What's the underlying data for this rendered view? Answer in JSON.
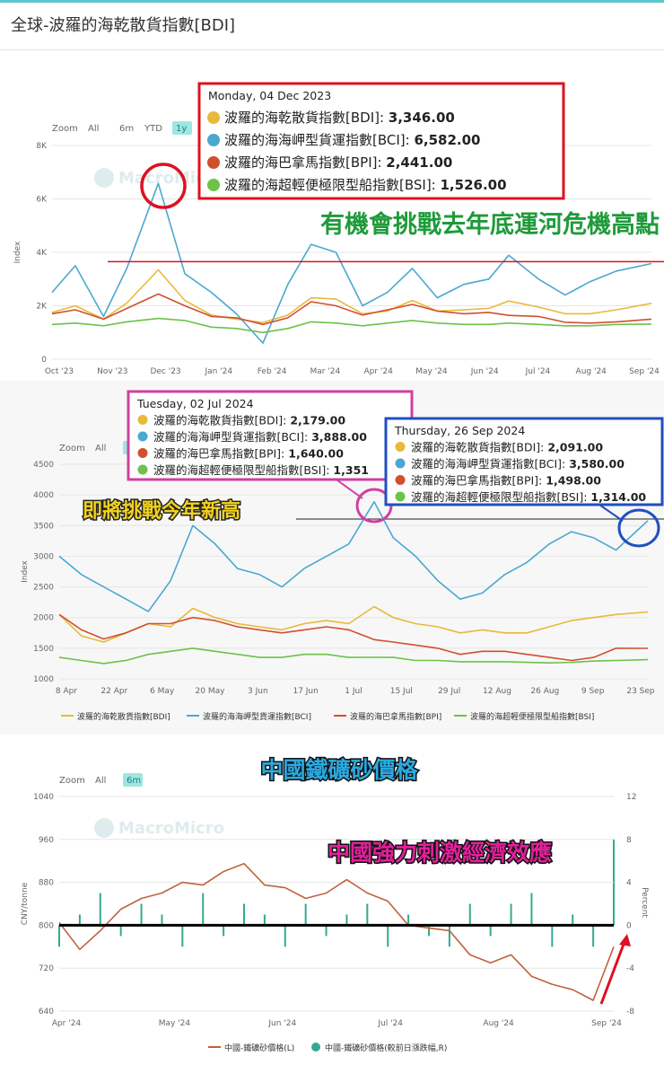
{
  "page": {
    "title": "全球-波羅的海乾散貨指數[BDI]"
  },
  "colors": {
    "bdi": "#e8b93a",
    "bci": "#4aa8d0",
    "bpi": "#d0502e",
    "bsi": "#6cc24a",
    "iron": "#c0623a",
    "pct": "#33aa8f",
    "red": "#dd1122"
  },
  "icons": [
    "macromicro-logo-icon"
  ],
  "chart_data": [
    {
      "type": "line",
      "zoom": {
        "label": "Zoom",
        "options": [
          "All",
          "6m",
          "YTD",
          "1y"
        ],
        "selected": "1y"
      },
      "watermark": "MacroMicro",
      "ylabel": "Index",
      "ylim": [
        0,
        8000
      ],
      "yticks": [
        "0",
        "2K",
        "4K",
        "6K",
        "8K"
      ],
      "xticks": [
        "Oct '23",
        "Nov '23",
        "Dec '23",
        "Jan '24",
        "Feb '24",
        "Mar '24",
        "Apr '24",
        "May '24",
        "Jun '24",
        "Jul '24",
        "Aug '24",
        "Sep '24"
      ],
      "x": [
        "2023-10-01",
        "2023-10-15",
        "2023-11-01",
        "2023-11-15",
        "2023-12-04",
        "2023-12-20",
        "2024-01-05",
        "2024-01-20",
        "2024-02-05",
        "2024-02-20",
        "2024-03-05",
        "2024-03-20",
        "2024-04-05",
        "2024-04-20",
        "2024-05-05",
        "2024-05-20",
        "2024-06-05",
        "2024-06-20",
        "2024-07-02",
        "2024-07-20",
        "2024-08-05",
        "2024-08-20",
        "2024-09-05",
        "2024-09-26"
      ],
      "series": [
        {
          "name": "波羅的海乾散貨指數[BDI]",
          "values": [
            1750,
            2000,
            1500,
            2100,
            3346,
            2200,
            1650,
            1500,
            1370,
            1650,
            2300,
            2250,
            1700,
            1800,
            2200,
            1800,
            1850,
            1900,
            2179,
            1950,
            1700,
            1700,
            1850,
            2091
          ]
        },
        {
          "name": "波羅的海海岬型貨運指數[BCI]",
          "values": [
            2500,
            3500,
            1600,
            3400,
            6582,
            3200,
            2500,
            1700,
            600,
            2800,
            4300,
            4000,
            2000,
            2500,
            3400,
            2300,
            2800,
            3000,
            3888,
            3000,
            2400,
            2900,
            3300,
            3580
          ]
        },
        {
          "name": "波羅的海巴拿馬指數[BPI]",
          "values": [
            1700,
            1850,
            1500,
            1900,
            2441,
            2000,
            1600,
            1550,
            1300,
            1550,
            2150,
            2000,
            1650,
            1850,
            2050,
            1800,
            1700,
            1750,
            1640,
            1600,
            1380,
            1350,
            1400,
            1498
          ]
        },
        {
          "name": "波羅的海超輕便極限型船指數[BSI]",
          "values": [
            1300,
            1350,
            1250,
            1400,
            1526,
            1450,
            1200,
            1150,
            1000,
            1150,
            1400,
            1350,
            1250,
            1350,
            1450,
            1350,
            1300,
            1300,
            1351,
            1300,
            1250,
            1250,
            1300,
            1314
          ]
        }
      ],
      "tooltip": {
        "date": "Monday, 04 Dec 2023",
        "rows": [
          {
            "label": "波羅的海乾散貨指數[BDI]:",
            "value": "3,346.00"
          },
          {
            "label": "波羅的海海岬型貨運指數[BCI]:",
            "value": "6,582.00"
          },
          {
            "label": "波羅的海巴拿馬指數[BPI]:",
            "value": "2,441.00"
          },
          {
            "label": "波羅的海超輕便極限型船指數[BSI]:",
            "value": "1,526.00"
          }
        ]
      },
      "reference_line": 3650,
      "annotation": "有機會挑戰去年底運河危機高點"
    },
    {
      "type": "line",
      "zoom": {
        "label": "Zoom",
        "options": [
          "All",
          "6m"
        ],
        "selected": "6m"
      },
      "ylabel": "Index",
      "ylim": [
        1000,
        4500
      ],
      "yticks": [
        "1000",
        "1500",
        "2000",
        "2500",
        "3000",
        "3500",
        "4000",
        "4500"
      ],
      "xticks": [
        "8 Apr",
        "22 Apr",
        "6 May",
        "20 May",
        "3 Jun",
        "17 Jun",
        "1 Jul",
        "15 Jul",
        "29 Jul",
        "12 Aug",
        "26 Aug",
        "9 Sep",
        "23 Sep"
      ],
      "x": [
        "2024-03-25",
        "2024-04-01",
        "2024-04-08",
        "2024-04-15",
        "2024-04-22",
        "2024-04-29",
        "2024-05-06",
        "2024-05-13",
        "2024-05-20",
        "2024-05-27",
        "2024-06-03",
        "2024-06-10",
        "2024-06-17",
        "2024-06-24",
        "2024-07-02",
        "2024-07-08",
        "2024-07-15",
        "2024-07-22",
        "2024-07-29",
        "2024-08-05",
        "2024-08-12",
        "2024-08-19",
        "2024-08-26",
        "2024-09-02",
        "2024-09-09",
        "2024-09-16",
        "2024-09-26"
      ],
      "series": [
        {
          "name": "波羅的海乾散貨指數[BDI]",
          "values": [
            2050,
            1700,
            1600,
            1750,
            1900,
            1850,
            2150,
            2000,
            1900,
            1850,
            1800,
            1900,
            1950,
            1900,
            2179,
            2000,
            1900,
            1850,
            1750,
            1800,
            1750,
            1750,
            1850,
            1950,
            2000,
            2050,
            2091
          ]
        },
        {
          "name": "波羅的海海岬型貨運指數[BCI]",
          "values": [
            3000,
            2700,
            2500,
            2300,
            2100,
            2600,
            3500,
            3200,
            2800,
            2700,
            2500,
            2800,
            3000,
            3200,
            3888,
            3300,
            3000,
            2600,
            2300,
            2400,
            2700,
            2900,
            3200,
            3400,
            3300,
            3100,
            3580
          ]
        },
        {
          "name": "波羅的海巴拿馬指數[BPI]",
          "values": [
            2050,
            1800,
            1650,
            1750,
            1900,
            1900,
            2000,
            1950,
            1850,
            1800,
            1750,
            1800,
            1850,
            1800,
            1640,
            1600,
            1550,
            1500,
            1400,
            1450,
            1450,
            1400,
            1350,
            1300,
            1350,
            1500,
            1498
          ]
        },
        {
          "name": "波羅的海超輕便極限型船指數[BSI]",
          "values": [
            1350,
            1300,
            1250,
            1300,
            1400,
            1450,
            1500,
            1450,
            1400,
            1350,
            1350,
            1400,
            1400,
            1350,
            1351,
            1350,
            1300,
            1300,
            1280,
            1280,
            1280,
            1270,
            1260,
            1270,
            1290,
            1300,
            1314
          ]
        }
      ],
      "tooltips": [
        {
          "date": "Tuesday, 02 Jul 2024",
          "rows": [
            {
              "label": "波羅的海乾散貨指數[BDI]:",
              "value": "2,179.00"
            },
            {
              "label": "波羅的海海岬型貨運指數[BCI]:",
              "value": "3,888.00"
            },
            {
              "label": "波羅的海巴拿馬指數[BPI]:",
              "value": "1,640.00"
            },
            {
              "label": "波羅的海超輕便極限型船指數[BSI]:",
              "value": "1,351"
            }
          ]
        },
        {
          "date": "Thursday, 26 Sep 2024",
          "rows": [
            {
              "label": "波羅的海乾散貨指數[BDI]:",
              "value": "2,091.00"
            },
            {
              "label": "波羅的海海岬型貨運指數[BCI]:",
              "value": "3,580.00"
            },
            {
              "label": "波羅的海巴拿馬指數[BPI]:",
              "value": "1,498.00"
            },
            {
              "label": "波羅的海超輕便極限型船指數[BSI]:",
              "value": "1,314.00"
            }
          ]
        }
      ],
      "reference_line": 3800,
      "annotation": "即將挑戰今年新高",
      "legend": [
        "波羅的海乾散貨指數[BDI]",
        "波羅的海海岬型貨運指數[BCI]",
        "波羅的海巴拿馬指數[BPI]",
        "波羅的海超輕便極限型船指數[BSI]"
      ]
    },
    {
      "type": "line",
      "title": "中國鐵礦砂價格",
      "zoom": {
        "label": "Zoom",
        "options": [
          "All",
          "6m"
        ],
        "selected": "6m"
      },
      "watermark": "MacroMicro",
      "ylabel": "CNY/tonne",
      "ylabel_right": "Percent",
      "ylim": [
        640,
        1040
      ],
      "ylim_right": [
        -8,
        12
      ],
      "yticks": [
        "640",
        "720",
        "800",
        "880",
        "960",
        "1040"
      ],
      "yticks_right": [
        "-8",
        "-4",
        "0",
        "4",
        "8",
        "12"
      ],
      "xticks": [
        "Apr '24",
        "May '24",
        "Jun '24",
        "Jul '24",
        "Aug '24",
        "Sep '24"
      ],
      "x": [
        "2024-03-25",
        "2024-04-01",
        "2024-04-08",
        "2024-04-15",
        "2024-04-22",
        "2024-04-29",
        "2024-05-06",
        "2024-05-13",
        "2024-05-20",
        "2024-05-27",
        "2024-06-03",
        "2024-06-10",
        "2024-06-17",
        "2024-06-24",
        "2024-07-01",
        "2024-07-08",
        "2024-07-15",
        "2024-07-22",
        "2024-07-29",
        "2024-08-05",
        "2024-08-12",
        "2024-08-19",
        "2024-08-26",
        "2024-09-02",
        "2024-09-09",
        "2024-09-16",
        "2024-09-23",
        "2024-09-30"
      ],
      "series": [
        {
          "name": "中國-鐵礦砂價格(L)",
          "values": [
            805,
            755,
            790,
            830,
            850,
            860,
            880,
            875,
            900,
            915,
            875,
            870,
            850,
            860,
            885,
            860,
            845,
            800,
            795,
            790,
            745,
            730,
            745,
            705,
            690,
            680,
            660,
            760
          ]
        },
        {
          "name": "中國-鐵礦砂價格(較前日漲跌幅,R)",
          "values": [
            -2,
            1,
            3,
            -1,
            2,
            1,
            -2,
            3,
            -1,
            2,
            1,
            -2,
            2,
            -1,
            1,
            2,
            -2,
            1,
            -1,
            -2,
            2,
            -1,
            2,
            3,
            -2,
            1,
            -2,
            8
          ]
        }
      ],
      "reference_line": 800,
      "annotation": "中國強力刺激經濟效應",
      "legend": [
        "中國-鐵礦砂價格(L)",
        "中國-鐵礦砂價格(較前日漲跌幅,R)"
      ]
    }
  ]
}
